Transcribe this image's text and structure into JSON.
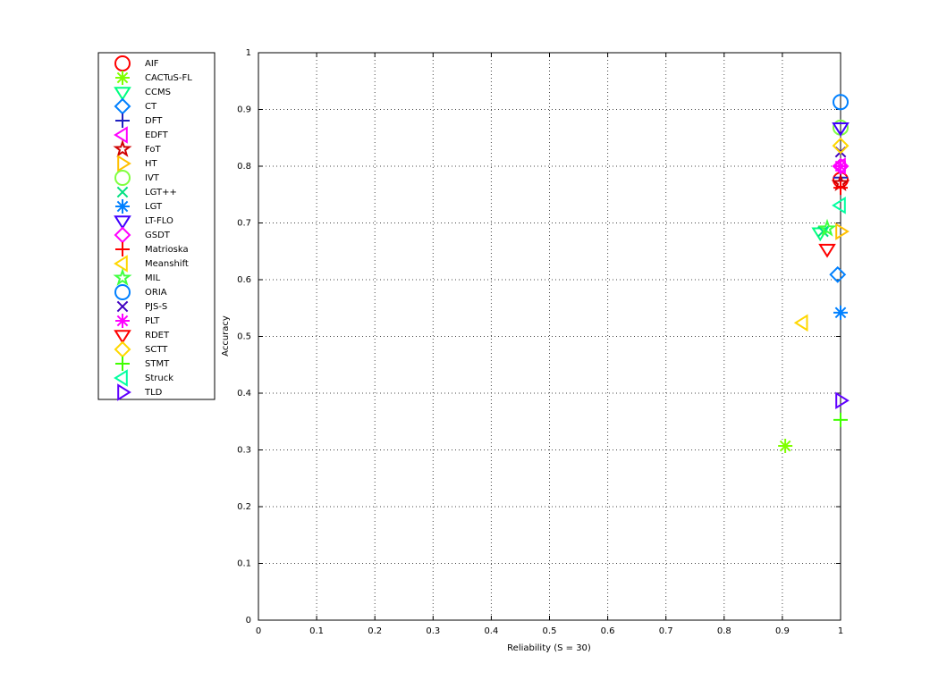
{
  "chart_data": {
    "type": "scatter",
    "xlabel": "Reliability (S = 30)",
    "ylabel": "Accuracy",
    "xlim": [
      0,
      1
    ],
    "ylim": [
      0,
      1
    ],
    "xticks": [
      0,
      0.1,
      0.2,
      0.3,
      0.4,
      0.5,
      0.6,
      0.7,
      0.8,
      0.9,
      1
    ],
    "yticks": [
      0,
      0.1,
      0.2,
      0.3,
      0.4,
      0.5,
      0.6,
      0.7,
      0.8,
      0.9,
      1
    ],
    "grid": true,
    "legend": "outside-left",
    "series": [
      {
        "name": "AIF",
        "color": "#ff0000",
        "marker": "circle",
        "x": [
          1
        ],
        "y": [
          0.776
        ]
      },
      {
        "name": "CACTuS-FL",
        "color": "#80ff00",
        "marker": "asterisk",
        "x": [
          0.905
        ],
        "y": [
          0.307
        ]
      },
      {
        "name": "CCMS",
        "color": "#00ff80",
        "marker": "triangle-down",
        "x": [
          0.965
        ],
        "y": [
          0.683
        ]
      },
      {
        "name": "CT",
        "color": "#0080ff",
        "marker": "diamond",
        "x": [
          0.995
        ],
        "y": [
          0.609
        ]
      },
      {
        "name": "DFT",
        "color": "#2020c0",
        "marker": "plus",
        "x": [
          1
        ],
        "y": [
          0.78
        ]
      },
      {
        "name": "EDFT",
        "color": "#ff00ff",
        "marker": "triangle-left",
        "x": [
          1
        ],
        "y": [
          0.8
        ]
      },
      {
        "name": "FoT",
        "color": "#d00000",
        "marker": "star",
        "x": [
          1
        ],
        "y": [
          0.77
        ]
      },
      {
        "name": "HT",
        "color": "#ffc000",
        "marker": "triangle-right",
        "x": [
          1
        ],
        "y": [
          0.685
        ]
      },
      {
        "name": "IVT",
        "color": "#80ff40",
        "marker": "circle",
        "x": [
          1
        ],
        "y": [
          0.868
        ]
      },
      {
        "name": "LGT++",
        "color": "#00e080",
        "marker": "x",
        "x": [
          0.97
        ],
        "y": [
          0.685
        ]
      },
      {
        "name": "LGT",
        "color": "#0080ff",
        "marker": "asterisk",
        "x": [
          1
        ],
        "y": [
          0.542
        ]
      },
      {
        "name": "LT-FLO",
        "color": "#4000ff",
        "marker": "triangle-down",
        "x": [
          1
        ],
        "y": [
          0.868
        ]
      },
      {
        "name": "GSDT",
        "color": "#ff00ff",
        "marker": "diamond",
        "x": [
          1
        ],
        "y": [
          0.8
        ]
      },
      {
        "name": "Matrioska",
        "color": "#ff0000",
        "marker": "plus",
        "x": [
          1
        ],
        "y": [
          0.762
        ]
      },
      {
        "name": "Meanshift",
        "color": "#ffd700",
        "marker": "triangle-left",
        "x": [
          0.935
        ],
        "y": [
          0.524
        ]
      },
      {
        "name": "MIL",
        "color": "#40ff40",
        "marker": "star",
        "x": [
          0.977
        ],
        "y": [
          0.69
        ]
      },
      {
        "name": "ORIA",
        "color": "#0080ff",
        "marker": "circle",
        "x": [
          1
        ],
        "y": [
          0.913
        ]
      },
      {
        "name": "PJS-S",
        "color": "#4000c0",
        "marker": "x",
        "x": [
          1
        ],
        "y": [
          0.825
        ]
      },
      {
        "name": "PLT",
        "color": "#ff00ff",
        "marker": "asterisk",
        "x": [
          1
        ],
        "y": [
          0.8
        ]
      },
      {
        "name": "RDET",
        "color": "#ff0000",
        "marker": "triangle-down",
        "x": [
          0.977
        ],
        "y": [
          0.654
        ]
      },
      {
        "name": "SCTT",
        "color": "#ffd700",
        "marker": "diamond",
        "x": [
          1
        ],
        "y": [
          0.836
        ]
      },
      {
        "name": "STMT",
        "color": "#40ff00",
        "marker": "plus",
        "x": [
          1
        ],
        "y": [
          0.353
        ]
      },
      {
        "name": "Struck",
        "color": "#00ffa0",
        "marker": "triangle-left",
        "x": [
          1
        ],
        "y": [
          0.731
        ]
      },
      {
        "name": "TLD",
        "color": "#6000ff",
        "marker": "triangle-right",
        "x": [
          1
        ],
        "y": [
          0.387
        ]
      }
    ]
  }
}
